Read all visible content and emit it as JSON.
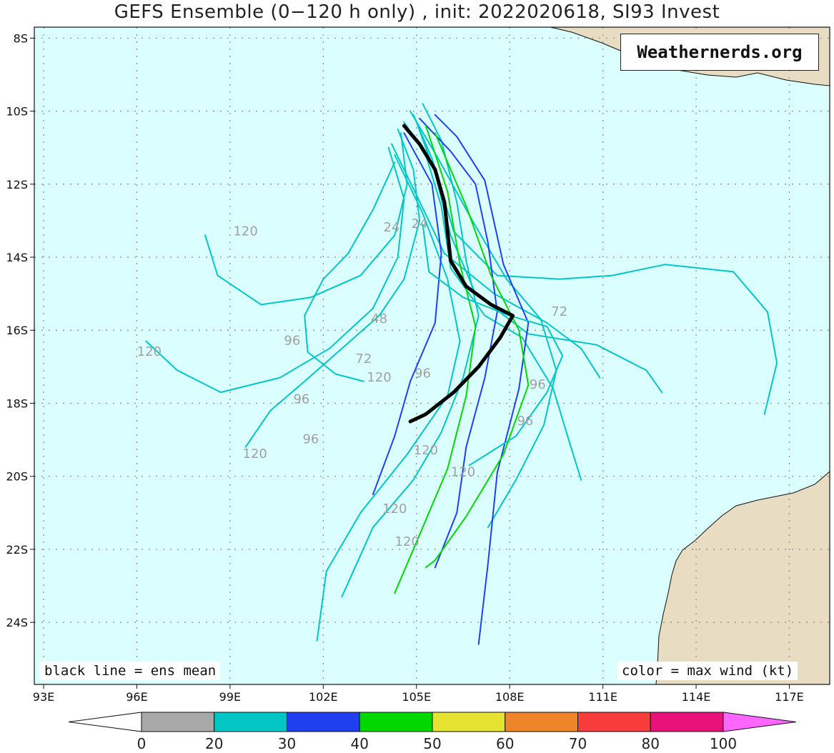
{
  "title": "GEFS Ensemble (0−120 h only) , init: 2022020618, SI93 Invest",
  "watermark": "Weathernerds.org",
  "notes": {
    "left": "black line = ens mean",
    "right": "color = max wind (kt)"
  },
  "colors": {
    "ocean": "#dbffff",
    "land": "#e8dcc2",
    "grid": "#888888",
    "mean_track": "#000000",
    "lead_label": "#a0a0a0"
  },
  "lon_ticks": [
    {
      "value": 93,
      "label": "93E"
    },
    {
      "value": 96,
      "label": "96E"
    },
    {
      "value": 99,
      "label": "99E"
    },
    {
      "value": 102,
      "label": "102E"
    },
    {
      "value": 105,
      "label": "105E"
    },
    {
      "value": 108,
      "label": "108E"
    },
    {
      "value": 111,
      "label": "111E"
    },
    {
      "value": 114,
      "label": "114E"
    },
    {
      "value": 117,
      "label": "117E"
    }
  ],
  "lat_ticks": [
    {
      "value": -8,
      "label": "8S"
    },
    {
      "value": -10,
      "label": "10S"
    },
    {
      "value": -12,
      "label": "12S"
    },
    {
      "value": -14,
      "label": "14S"
    },
    {
      "value": -16,
      "label": "16S"
    },
    {
      "value": -18,
      "label": "18S"
    },
    {
      "value": -20,
      "label": "20S"
    },
    {
      "value": -22,
      "label": "22S"
    },
    {
      "value": -24,
      "label": "24S"
    }
  ],
  "colorbar": {
    "bins": [
      {
        "from": 0,
        "to": 20,
        "color": "#a8a8a8"
      },
      {
        "from": 20,
        "to": 30,
        "color": "#00c6c6"
      },
      {
        "from": 30,
        "to": 40,
        "color": "#2040f0"
      },
      {
        "from": 40,
        "to": 50,
        "color": "#00d800"
      },
      {
        "from": 50,
        "to": 60,
        "color": "#e6e232"
      },
      {
        "from": 60,
        "to": 70,
        "color": "#f08428"
      },
      {
        "from": 70,
        "to": 80,
        "color": "#f83c3c"
      },
      {
        "from": 80,
        "to": 100,
        "color": "#e8127a"
      }
    ],
    "above_color": "#ff66ff",
    "below_color": "#ffffff",
    "labels": [
      "0",
      "20",
      "30",
      "40",
      "50",
      "60",
      "70",
      "80",
      "100"
    ]
  },
  "chart_data": {
    "type": "track_map",
    "extent": {
      "lon": [
        92.7,
        118.3
      ],
      "lat": [
        -25.7,
        -7.7
      ]
    },
    "mean_track": [
      [
        104.8,
        -18.5
      ],
      [
        105.3,
        -18.3
      ],
      [
        106.2,
        -17.7
      ],
      [
        107.0,
        -17.0
      ],
      [
        107.7,
        -16.2
      ],
      [
        108.1,
        -15.6
      ],
      [
        107.4,
        -15.3
      ],
      [
        106.6,
        -14.8
      ],
      [
        106.1,
        -14.1
      ],
      [
        105.9,
        -12.5
      ],
      [
        105.6,
        -11.6
      ],
      [
        105.1,
        -10.9
      ],
      [
        104.6,
        -10.4
      ]
    ],
    "members": [
      {
        "wind": 25,
        "points": [
          [
            104.6,
            -10.3
          ],
          [
            105.3,
            -11.2
          ],
          [
            105.8,
            -12.6
          ],
          [
            106.1,
            -14.3
          ],
          [
            107.2,
            -15.6
          ],
          [
            108.4,
            -16.2
          ],
          [
            109.4,
            -17.6
          ],
          [
            109.9,
            -19.0
          ],
          [
            110.3,
            -20.1
          ]
        ]
      },
      {
        "wind": 25,
        "points": [
          [
            104.4,
            -10.5
          ],
          [
            104.9,
            -11.6
          ],
          [
            105.1,
            -13.0
          ],
          [
            104.6,
            -14.6
          ],
          [
            103.8,
            -15.6
          ],
          [
            102.6,
            -16.5
          ],
          [
            101.4,
            -17.4
          ],
          [
            100.3,
            -18.2
          ],
          [
            99.5,
            -19.2
          ]
        ]
      },
      {
        "wind": 25,
        "points": [
          [
            104.2,
            -10.9
          ],
          [
            105.0,
            -12.3
          ],
          [
            105.9,
            -13.9
          ],
          [
            107.5,
            -15.0
          ],
          [
            109.2,
            -15.8
          ],
          [
            110.3,
            -16.5
          ],
          [
            110.9,
            -17.3
          ]
        ]
      },
      {
        "wind": 25,
        "points": [
          [
            105.2,
            -9.8
          ],
          [
            105.8,
            -10.8
          ],
          [
            106.3,
            -12.5
          ],
          [
            106.6,
            -14.1
          ],
          [
            107.0,
            -15.6
          ],
          [
            106.5,
            -17.3
          ],
          [
            105.8,
            -18.8
          ],
          [
            104.9,
            -20.1
          ],
          [
            103.6,
            -21.4
          ],
          [
            102.6,
            -23.3
          ]
        ]
      },
      {
        "wind": 25,
        "points": [
          [
            104.9,
            -10.1
          ],
          [
            105.5,
            -11.3
          ],
          [
            106.2,
            -13.3
          ],
          [
            107.6,
            -14.5
          ],
          [
            109.6,
            -14.6
          ],
          [
            111.3,
            -14.5
          ],
          [
            113.0,
            -14.2
          ],
          [
            115.2,
            -14.4
          ],
          [
            116.3,
            -15.5
          ],
          [
            116.6,
            -16.9
          ],
          [
            116.2,
            -18.3
          ]
        ]
      },
      {
        "wind": 25,
        "points": [
          [
            104.5,
            -10.6
          ],
          [
            104.7,
            -12.0
          ],
          [
            104.3,
            -13.4
          ],
          [
            103.2,
            -14.5
          ],
          [
            101.6,
            -15.1
          ],
          [
            100.0,
            -15.3
          ],
          [
            98.6,
            -14.5
          ],
          [
            98.2,
            -13.4
          ]
        ]
      },
      {
        "wind": 25,
        "points": [
          [
            104.3,
            -11.2
          ],
          [
            105.2,
            -12.8
          ],
          [
            106.0,
            -14.6
          ],
          [
            106.4,
            -16.3
          ],
          [
            106.0,
            -17.8
          ],
          [
            104.7,
            -19.4
          ],
          [
            103.2,
            -21.0
          ],
          [
            102.1,
            -22.6
          ],
          [
            101.8,
            -24.5
          ]
        ]
      },
      {
        "wind": 25,
        "points": [
          [
            104.8,
            -10.0
          ],
          [
            105.7,
            -11.3
          ],
          [
            106.8,
            -13.0
          ],
          [
            107.9,
            -14.6
          ],
          [
            109.0,
            -15.7
          ],
          [
            109.5,
            -17.1
          ],
          [
            109.1,
            -18.6
          ],
          [
            108.2,
            -20.1
          ],
          [
            107.3,
            -21.4
          ]
        ]
      },
      {
        "wind": 25,
        "points": [
          [
            104.1,
            -11.0
          ],
          [
            104.6,
            -12.4
          ],
          [
            104.4,
            -14.0
          ],
          [
            103.6,
            -15.4
          ],
          [
            102.2,
            -16.5
          ],
          [
            100.6,
            -17.3
          ],
          [
            98.7,
            -17.7
          ],
          [
            97.3,
            -17.1
          ],
          [
            96.3,
            -16.3
          ]
        ]
      },
      {
        "wind": 25,
        "points": [
          [
            105.0,
            -10.3
          ],
          [
            105.6,
            -11.7
          ],
          [
            106.1,
            -13.4
          ],
          [
            106.9,
            -15.0
          ],
          [
            108.6,
            -16.1
          ],
          [
            110.8,
            -16.4
          ],
          [
            112.4,
            -17.1
          ],
          [
            112.9,
            -17.7
          ]
        ]
      },
      {
        "wind": 35,
        "points": [
          [
            105.1,
            -10.2
          ],
          [
            106.1,
            -11.1
          ],
          [
            106.9,
            -12.0
          ],
          [
            107.3,
            -13.6
          ],
          [
            107.6,
            -15.5
          ],
          [
            107.2,
            -17.3
          ],
          [
            106.6,
            -19.2
          ],
          [
            106.3,
            -21.0
          ],
          [
            105.6,
            -22.5
          ]
        ]
      },
      {
        "wind": 35,
        "points": [
          [
            105.6,
            -10.1
          ],
          [
            106.3,
            -10.7
          ],
          [
            107.2,
            -11.9
          ],
          [
            107.8,
            -14.2
          ],
          [
            108.6,
            -15.8
          ],
          [
            108.3,
            -17.6
          ],
          [
            107.6,
            -19.9
          ],
          [
            107.3,
            -22.4
          ],
          [
            107.0,
            -24.6
          ]
        ]
      },
      {
        "wind": 35,
        "points": [
          [
            104.6,
            -10.6
          ],
          [
            105.5,
            -12.0
          ],
          [
            105.8,
            -13.9
          ],
          [
            105.6,
            -15.8
          ],
          [
            104.8,
            -17.4
          ],
          [
            104.3,
            -18.9
          ],
          [
            103.6,
            -20.5
          ]
        ]
      },
      {
        "wind": 45,
        "points": [
          [
            105.3,
            -10.4
          ],
          [
            106.0,
            -12.2
          ],
          [
            106.4,
            -14.2
          ],
          [
            106.9,
            -15.9
          ],
          [
            106.6,
            -17.8
          ],
          [
            106.0,
            -19.8
          ],
          [
            105.0,
            -21.8
          ],
          [
            104.3,
            -23.2
          ]
        ]
      },
      {
        "wind": 45,
        "points": [
          [
            105.6,
            -10.6
          ],
          [
            106.6,
            -12.6
          ],
          [
            107.4,
            -14.5
          ],
          [
            108.3,
            -16.0
          ],
          [
            108.6,
            -17.5
          ],
          [
            107.8,
            -19.4
          ],
          [
            106.6,
            -21.1
          ],
          [
            105.6,
            -22.3
          ],
          [
            105.3,
            -22.5
          ]
        ]
      },
      {
        "wind": 20,
        "points": [
          [
            104.3,
            -11.4
          ],
          [
            103.6,
            -12.7
          ],
          [
            102.8,
            -13.9
          ],
          [
            102.0,
            -14.6
          ],
          [
            101.4,
            -15.6
          ],
          [
            101.5,
            -16.6
          ],
          [
            102.4,
            -17.2
          ],
          [
            103.3,
            -17.4
          ]
        ]
      },
      {
        "wind": 20,
        "points": [
          [
            105.2,
            -13.1
          ],
          [
            105.4,
            -14.4
          ],
          [
            106.5,
            -15.1
          ],
          [
            108.0,
            -15.6
          ],
          [
            109.2,
            -15.9
          ],
          [
            109.7,
            -16.7
          ],
          [
            109.2,
            -17.7
          ],
          [
            108.2,
            -18.9
          ],
          [
            106.7,
            -19.7
          ]
        ]
      }
    ],
    "lead_labels": [
      {
        "text": "24",
        "lon": 104.2,
        "lat": -13.3
      },
      {
        "text": "24",
        "lon": 105.1,
        "lat": -13.2
      },
      {
        "text": "48",
        "lon": 103.8,
        "lat": -15.8
      },
      {
        "text": "72",
        "lon": 103.3,
        "lat": -16.9
      },
      {
        "text": "72",
        "lon": 109.6,
        "lat": -15.6
      },
      {
        "text": "96",
        "lon": 101.0,
        "lat": -16.4
      },
      {
        "text": "96",
        "lon": 105.2,
        "lat": -17.3
      },
      {
        "text": "96",
        "lon": 101.3,
        "lat": -18.0
      },
      {
        "text": "96",
        "lon": 101.6,
        "lat": -19.1
      },
      {
        "text": "96",
        "lon": 108.5,
        "lat": -18.6
      },
      {
        "text": "96",
        "lon": 108.9,
        "lat": -17.6
      },
      {
        "text": "120",
        "lon": 99.5,
        "lat": -13.4
      },
      {
        "text": "120",
        "lon": 96.4,
        "lat": -16.7
      },
      {
        "text": "120",
        "lon": 103.8,
        "lat": -17.4
      },
      {
        "text": "120",
        "lon": 99.8,
        "lat": -19.5
      },
      {
        "text": "120",
        "lon": 105.3,
        "lat": -19.4
      },
      {
        "text": "120",
        "lon": 106.5,
        "lat": -20.0
      },
      {
        "text": "120",
        "lon": 104.3,
        "lat": -21.0
      },
      {
        "text": "120",
        "lon": 104.7,
        "lat": -21.9
      }
    ]
  }
}
